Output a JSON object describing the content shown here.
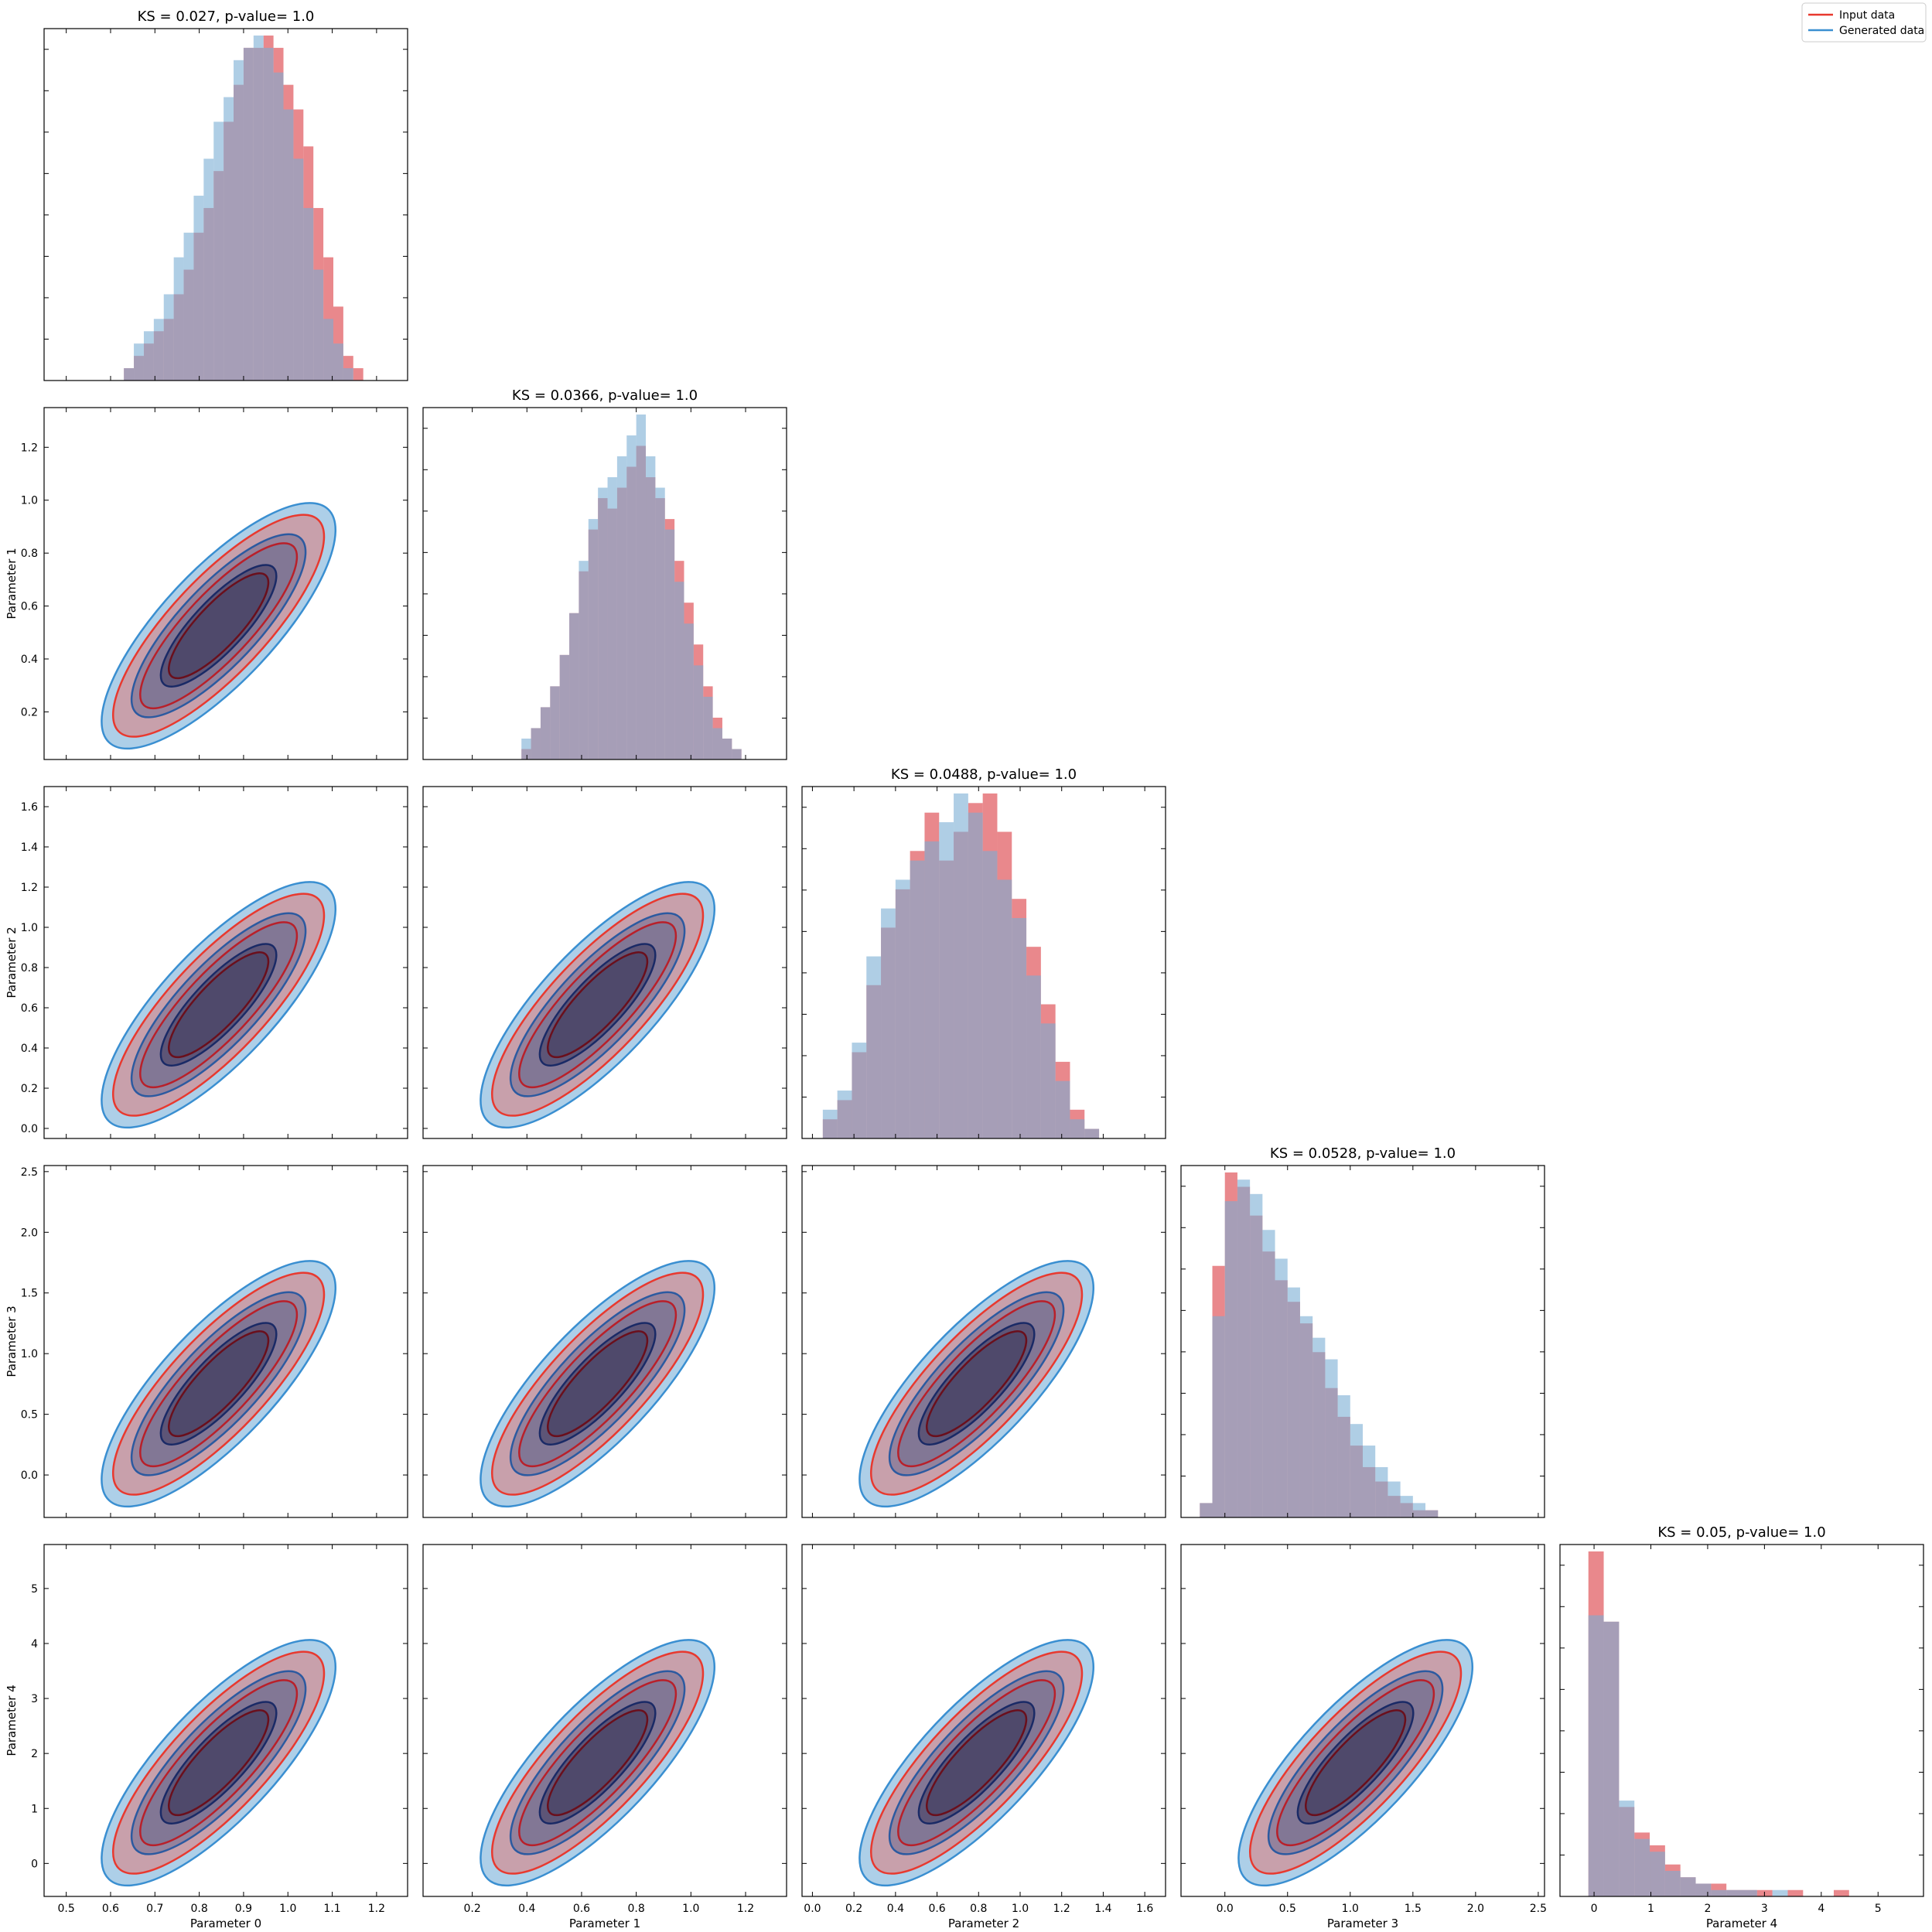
{
  "colors": {
    "input": "#e8392f",
    "generated": "#3a8fd1",
    "input_fill": "#f05a4f",
    "generated_fill": "#4a95cc",
    "overlap": "#6b6a8f",
    "input_hist": "#e36a6f",
    "generated_hist": "#7aaed3"
  },
  "legend": {
    "placement": "top-right",
    "entries": [
      {
        "label": "Input data",
        "color": "#e8392f"
      },
      {
        "label": "Generated data",
        "color": "#3a8fd1"
      }
    ]
  },
  "chart_data": {
    "type": "corner",
    "parameters": [
      {
        "label": "Parameter 0",
        "range": [
          0.45,
          1.27
        ],
        "ticks": [
          "0.5",
          "0.6",
          "0.7",
          "0.8",
          "0.9",
          "1.0",
          "1.1",
          "1.2"
        ]
      },
      {
        "label": "Parameter 1",
        "range": [
          0.02,
          1.35
        ],
        "ticks": [
          "0.2",
          "0.4",
          "0.6",
          "0.8",
          "1.0",
          "1.2"
        ]
      },
      {
        "label": "Parameter 2",
        "range": [
          -0.05,
          1.7
        ],
        "ticks": [
          "0.0",
          "0.2",
          "0.4",
          "0.6",
          "0.8",
          "1.0",
          "1.2",
          "1.4",
          "1.6"
        ]
      },
      {
        "label": "Parameter 3",
        "range": [
          -0.35,
          2.55
        ],
        "ticks": [
          "0.0",
          "0.5",
          "1.0",
          "1.5",
          "2.0",
          "2.5"
        ]
      },
      {
        "label": "Parameter 4",
        "range": [
          -0.6,
          5.8
        ],
        "ticks": [
          "0",
          "1",
          "2",
          "3",
          "4",
          "5"
        ]
      }
    ],
    "diagonal": [
      {
        "title": "KS = 0.027, p-value= 1.0",
        "bin_start": 0.63,
        "bin_width": 0.0225,
        "input": [
          1,
          2,
          3,
          4,
          5,
          7,
          9,
          12,
          14,
          17,
          21,
          24,
          27,
          27,
          28,
          27,
          24,
          22,
          19,
          14,
          10,
          6,
          2,
          1
        ],
        "generated": [
          1,
          3,
          4,
          5,
          7,
          10,
          12,
          15,
          18,
          21,
          23,
          26,
          27,
          28,
          27,
          25,
          22,
          18,
          14,
          9,
          5,
          3,
          1,
          0
        ]
      },
      {
        "title": "KS = 0.0366, p-value= 1.0",
        "bin_start": 0.38,
        "bin_width": 0.035,
        "input": [
          1,
          3,
          5,
          7,
          10,
          14,
          18,
          22,
          25,
          24,
          26,
          28,
          30,
          27,
          25,
          23,
          19,
          15,
          11,
          7,
          4,
          2,
          1
        ],
        "generated": [
          2,
          3,
          5,
          7,
          10,
          14,
          19,
          23,
          26,
          27,
          29,
          31,
          33,
          29,
          26,
          22,
          17,
          13,
          9,
          6,
          3,
          2,
          1
        ]
      },
      {
        "title": "KS = 0.0488, p-value= 1.0",
        "bin_start": 0.05,
        "bin_width": 0.07,
        "input": [
          2,
          4,
          9,
          16,
          22,
          26,
          30,
          34,
          29,
          32,
          35,
          36,
          32,
          25,
          20,
          14,
          8,
          3,
          1
        ],
        "generated": [
          3,
          5,
          10,
          19,
          24,
          27,
          29,
          31,
          33,
          36,
          34,
          30,
          27,
          23,
          17,
          12,
          6,
          2,
          1
        ]
      },
      {
        "title": "KS = 0.0528, p-value= 1.0",
        "bin_start": -0.2,
        "bin_width": 0.1,
        "input": [
          2,
          35,
          48,
          46,
          42,
          37,
          33,
          30,
          27,
          23,
          18,
          14,
          10,
          7,
          5,
          3,
          2,
          1,
          1,
          0,
          0,
          0
        ],
        "generated": [
          2,
          28,
          44,
          47,
          45,
          40,
          36,
          32,
          28,
          25,
          22,
          17,
          13,
          10,
          7,
          5,
          3,
          2,
          1,
          0,
          0,
          0
        ]
      },
      {
        "title": "KS = 0.05, p-value= 1.0",
        "bin_start": -0.1,
        "bin_width": 0.27,
        "input": [
          54,
          43,
          14,
          10,
          8,
          5,
          3,
          2,
          2,
          1,
          1,
          1,
          0,
          1,
          0,
          0,
          1,
          0,
          0,
          0
        ],
        "generated": [
          44,
          43,
          15,
          9,
          7,
          4,
          3,
          2,
          1,
          1,
          1,
          0,
          1,
          0,
          0,
          0,
          0,
          0,
          0,
          0
        ]
      }
    ]
  }
}
